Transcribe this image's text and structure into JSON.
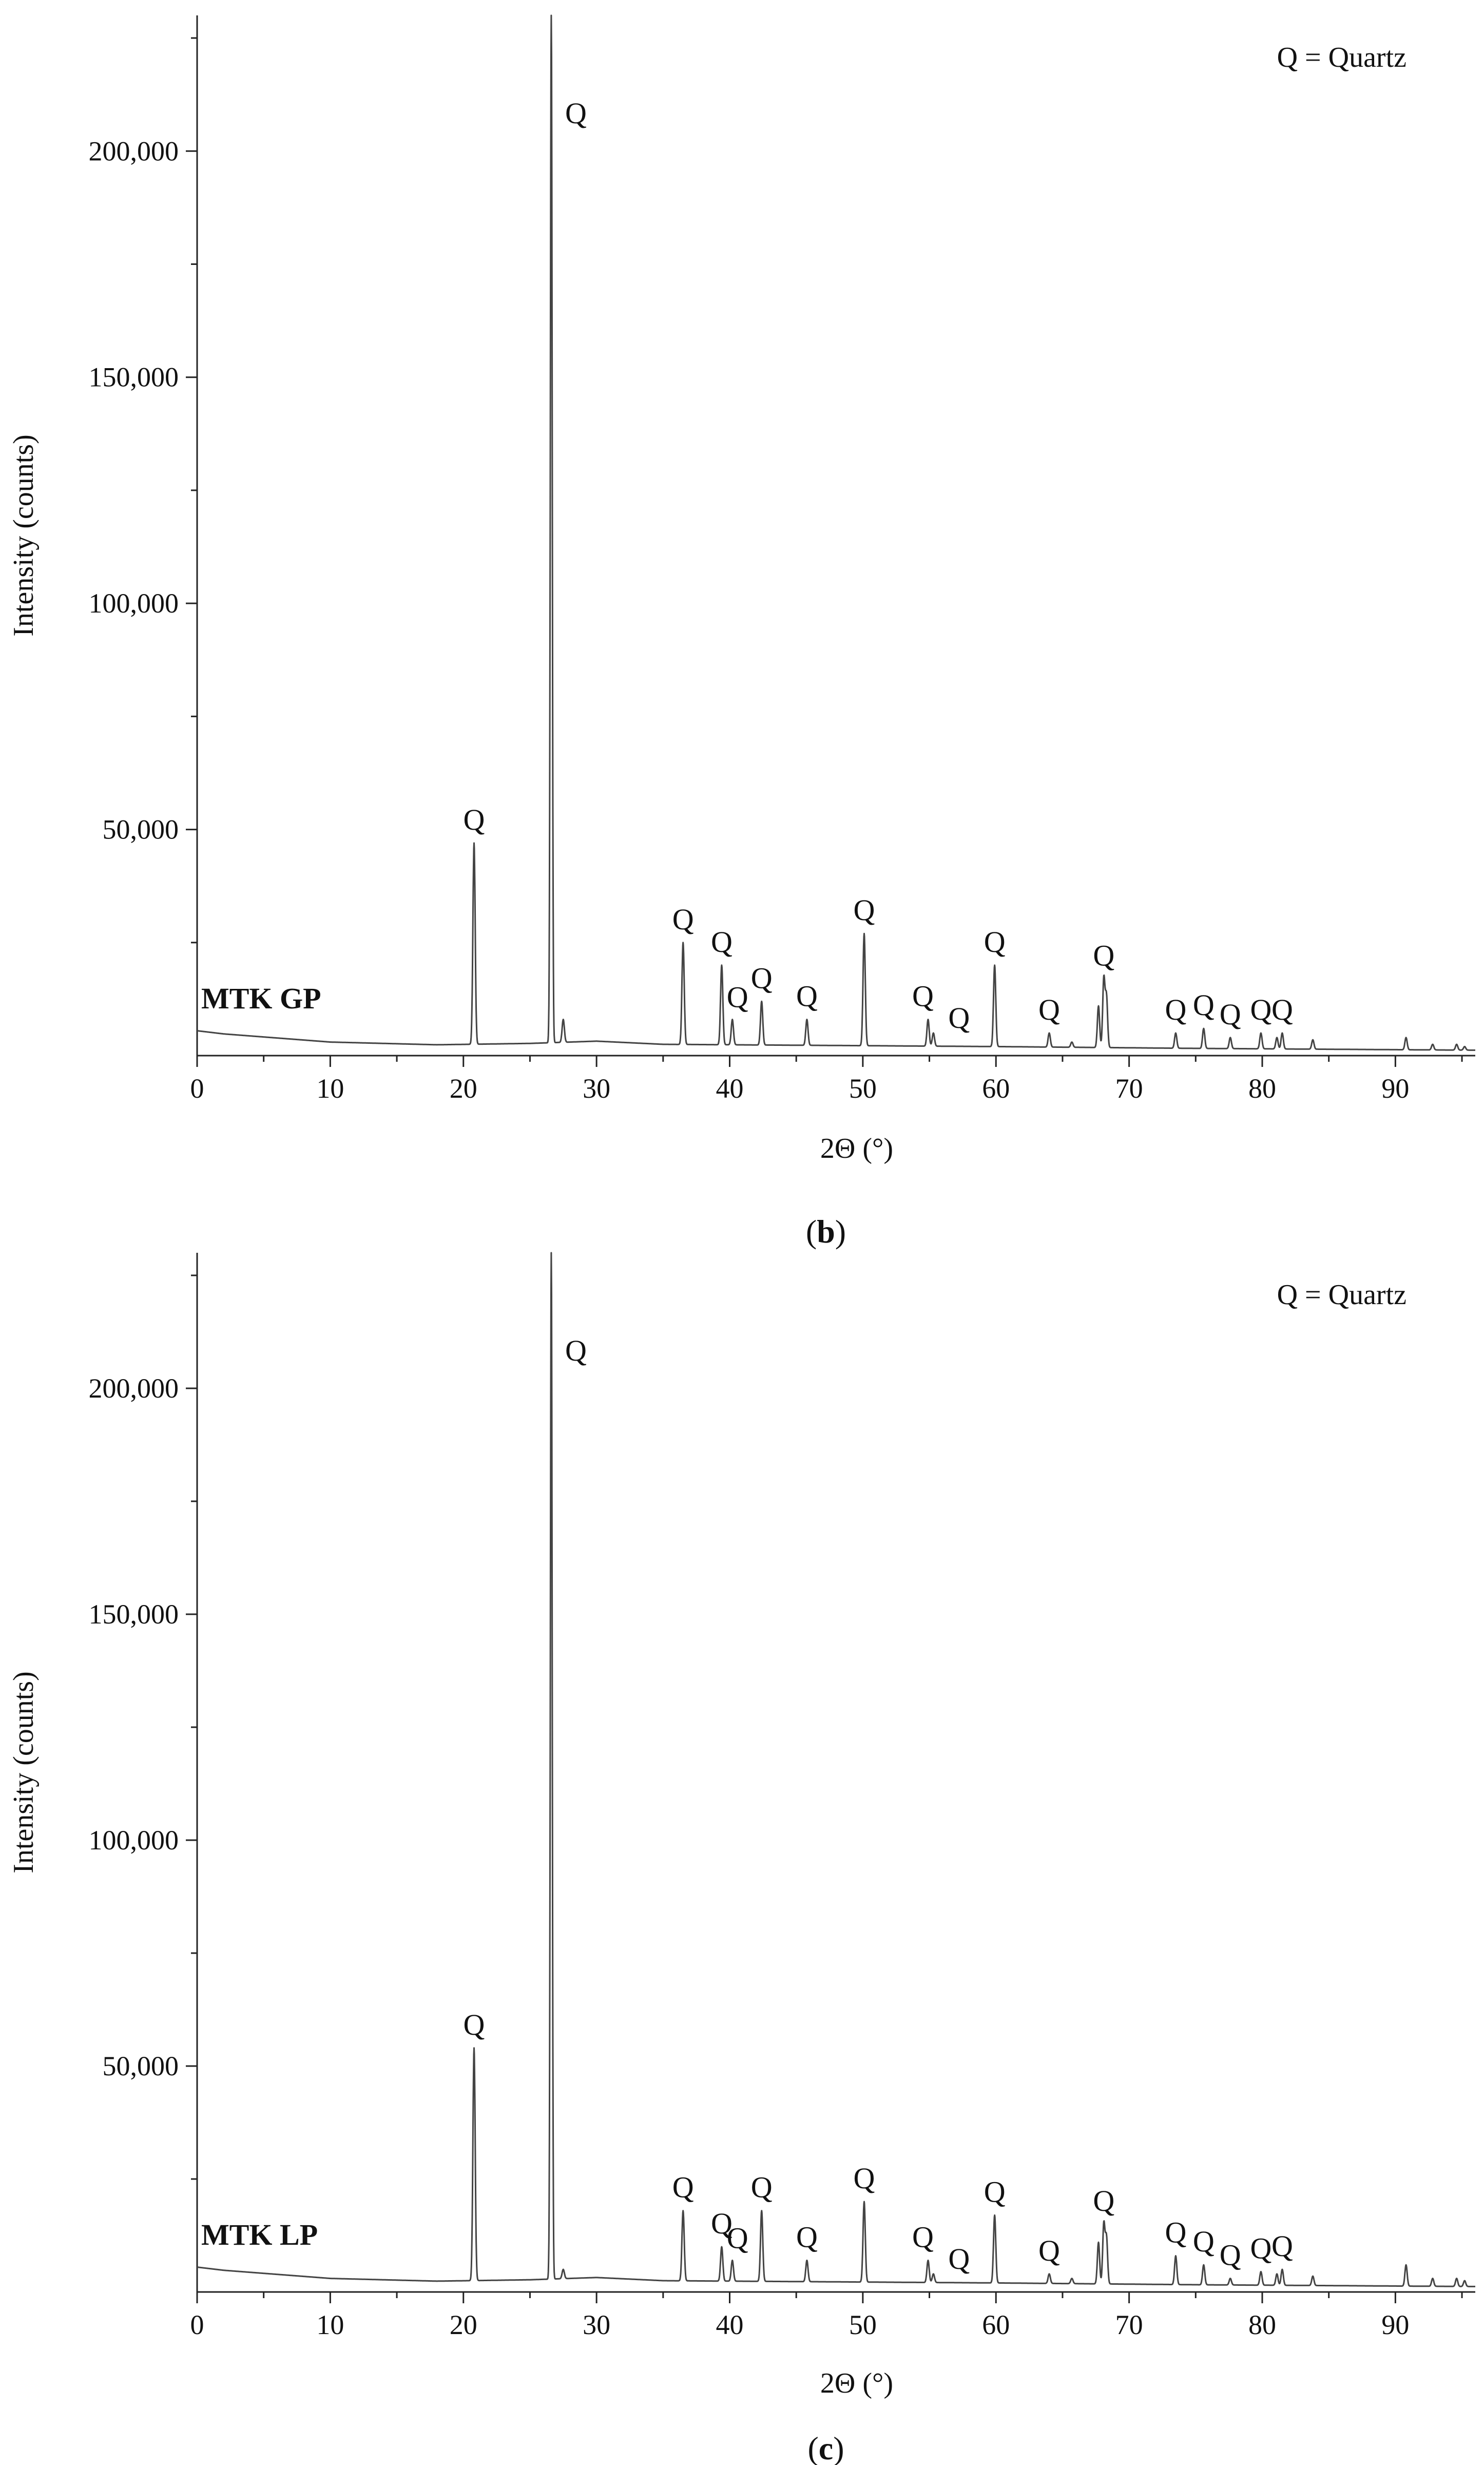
{
  "chart_data": [
    {
      "type": "line",
      "panel_label": "b",
      "sample_label": "MTK GP",
      "legend": "Q = Quartz",
      "xlabel": "2Θ (°)",
      "ylabel": "Intensity (counts)",
      "xlim": [
        0,
        96
      ],
      "ylim": [
        0,
        230000
      ],
      "x_ticks": [
        0,
        10,
        20,
        30,
        40,
        50,
        60,
        70,
        80,
        90
      ],
      "y_ticks": [
        50000,
        100000,
        150000,
        200000
      ],
      "x_tick_labels": [
        "0",
        "10",
        "20",
        "30",
        "40",
        "50",
        "60",
        "70",
        "80",
        "90"
      ],
      "y_tick_labels": [
        "50,000",
        "100,000",
        "150,000",
        "200,000"
      ],
      "grid": false,
      "baseline": [
        [
          0,
          5500
        ],
        [
          2,
          4800
        ],
        [
          10,
          3000
        ],
        [
          18,
          2400
        ],
        [
          25,
          2700
        ],
        [
          30,
          3200
        ],
        [
          35,
          2500
        ],
        [
          45,
          2300
        ],
        [
          60,
          2000
        ],
        [
          75,
          1600
        ],
        [
          96,
          1200
        ]
      ],
      "peaks": [
        {
          "x": 20.8,
          "y": 47000,
          "label": "Q"
        },
        {
          "x": 26.6,
          "y": 230000,
          "label": "Q"
        },
        {
          "x": 27.5,
          "y": 8000,
          "label": ""
        },
        {
          "x": 36.5,
          "y": 25000,
          "label": "Q"
        },
        {
          "x": 39.4,
          "y": 20000,
          "label": "Q"
        },
        {
          "x": 40.2,
          "y": 8000,
          "label": "Q"
        },
        {
          "x": 42.4,
          "y": 12000,
          "label": "Q"
        },
        {
          "x": 45.8,
          "y": 8000,
          "label": "Q"
        },
        {
          "x": 50.1,
          "y": 27000,
          "label": "Q"
        },
        {
          "x": 54.9,
          "y": 8000,
          "label": "Q"
        },
        {
          "x": 55.3,
          "y": 5000,
          "label": "Q"
        },
        {
          "x": 59.9,
          "y": 20000,
          "label": "Q"
        },
        {
          "x": 64.0,
          "y": 5000,
          "label": "Q"
        },
        {
          "x": 65.7,
          "y": 3000,
          "label": ""
        },
        {
          "x": 67.7,
          "y": 11000,
          "label": ""
        },
        {
          "x": 68.1,
          "y": 17000,
          "label": "Q"
        },
        {
          "x": 68.3,
          "y": 13000,
          "label": ""
        },
        {
          "x": 73.5,
          "y": 5000,
          "label": "Q"
        },
        {
          "x": 75.6,
          "y": 6000,
          "label": "Q"
        },
        {
          "x": 77.6,
          "y": 4000,
          "label": "Q"
        },
        {
          "x": 79.9,
          "y": 5000,
          "label": "Q"
        },
        {
          "x": 81.1,
          "y": 4000,
          "label": ""
        },
        {
          "x": 81.5,
          "y": 5000,
          "label": "Q"
        },
        {
          "x": 83.8,
          "y": 3500,
          "label": ""
        },
        {
          "x": 90.8,
          "y": 4000,
          "label": ""
        },
        {
          "x": 92.8,
          "y": 2500,
          "label": ""
        },
        {
          "x": 94.6,
          "y": 2500,
          "label": ""
        },
        {
          "x": 95.2,
          "y": 2000,
          "label": ""
        }
      ]
    },
    {
      "type": "line",
      "panel_label": "c",
      "sample_label": "MTK LP",
      "legend": "Q = Quartz",
      "xlabel": "2Θ (°)",
      "ylabel": "Intensity (counts)",
      "xlim": [
        0,
        96
      ],
      "ylim": [
        0,
        230000
      ],
      "x_ticks": [
        0,
        10,
        20,
        30,
        40,
        50,
        60,
        70,
        80,
        90
      ],
      "y_ticks": [
        50000,
        100000,
        150000,
        200000
      ],
      "x_tick_labels": [
        "0",
        "10",
        "20",
        "30",
        "40",
        "50",
        "60",
        "70",
        "80",
        "90"
      ],
      "y_tick_labels": [
        "50,000",
        "100,000",
        "150,000",
        "200,000"
      ],
      "grid": false,
      "baseline": [
        [
          0,
          5500
        ],
        [
          2,
          4800
        ],
        [
          10,
          3000
        ],
        [
          18,
          2400
        ],
        [
          25,
          2700
        ],
        [
          30,
          3200
        ],
        [
          35,
          2500
        ],
        [
          45,
          2300
        ],
        [
          60,
          2000
        ],
        [
          75,
          1600
        ],
        [
          96,
          1200
        ]
      ],
      "peaks": [
        {
          "x": 20.8,
          "y": 54000,
          "label": "Q"
        },
        {
          "x": 26.6,
          "y": 230000,
          "label": "Q"
        },
        {
          "x": 27.5,
          "y": 5000,
          "label": ""
        },
        {
          "x": 36.5,
          "y": 18000,
          "label": "Q"
        },
        {
          "x": 39.4,
          "y": 10000,
          "label": "Q"
        },
        {
          "x": 40.2,
          "y": 7000,
          "label": "Q"
        },
        {
          "x": 42.4,
          "y": 18000,
          "label": "Q"
        },
        {
          "x": 45.8,
          "y": 7000,
          "label": "Q"
        },
        {
          "x": 50.1,
          "y": 20000,
          "label": "Q"
        },
        {
          "x": 54.9,
          "y": 7000,
          "label": "Q"
        },
        {
          "x": 55.3,
          "y": 4000,
          "label": "Q"
        },
        {
          "x": 59.9,
          "y": 17000,
          "label": "Q"
        },
        {
          "x": 64.0,
          "y": 4000,
          "label": "Q"
        },
        {
          "x": 65.7,
          "y": 3000,
          "label": ""
        },
        {
          "x": 67.7,
          "y": 11000,
          "label": ""
        },
        {
          "x": 68.1,
          "y": 15000,
          "label": "Q"
        },
        {
          "x": 68.3,
          "y": 12000,
          "label": ""
        },
        {
          "x": 73.5,
          "y": 8000,
          "label": "Q"
        },
        {
          "x": 75.6,
          "y": 6000,
          "label": "Q"
        },
        {
          "x": 77.6,
          "y": 3000,
          "label": "Q"
        },
        {
          "x": 79.9,
          "y": 4500,
          "label": "Q"
        },
        {
          "x": 81.1,
          "y": 4000,
          "label": ""
        },
        {
          "x": 81.5,
          "y": 5000,
          "label": "Q"
        },
        {
          "x": 83.8,
          "y": 3500,
          "label": ""
        },
        {
          "x": 90.8,
          "y": 6000,
          "label": ""
        },
        {
          "x": 92.8,
          "y": 3000,
          "label": ""
        },
        {
          "x": 94.6,
          "y": 3000,
          "label": ""
        },
        {
          "x": 95.2,
          "y": 2500,
          "label": ""
        }
      ]
    }
  ]
}
